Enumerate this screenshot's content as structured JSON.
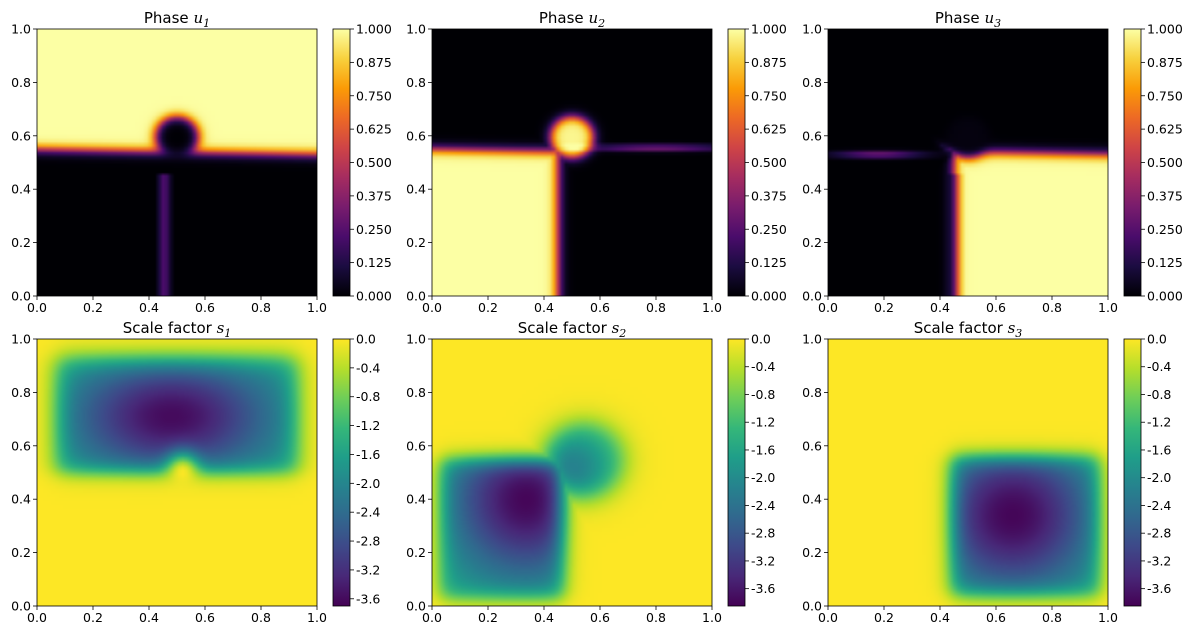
{
  "figure": {
    "colormaps": {
      "inferno": [
        "#000004",
        "#1b0c41",
        "#4a0c6b",
        "#781c6d",
        "#a52c60",
        "#cf4446",
        "#ed6925",
        "#fb9b06",
        "#f7d13d",
        "#fcffa4"
      ],
      "viridis": [
        "#440154",
        "#482878",
        "#3e4989",
        "#31688e",
        "#26828e",
        "#1f9e89",
        "#35b779",
        "#6ece58",
        "#b5de2b",
        "#fde725"
      ]
    }
  },
  "chart_data": [
    {
      "type": "heatmap",
      "title_prefix": "Phase",
      "title_var": "u",
      "title_sub": "1",
      "field": "u1",
      "colormap": "magma-like (inferno)",
      "xlim": [
        0,
        1
      ],
      "ylim": [
        0,
        1
      ],
      "xticks": [
        "0.0",
        "0.2",
        "0.4",
        "0.6",
        "0.8",
        "1.0"
      ],
      "yticks": [
        "0.0",
        "0.2",
        "0.4",
        "0.6",
        "0.8",
        "1.0"
      ],
      "colorbar_range": [
        0,
        1
      ],
      "colorbar_ticks": [
        "0.000",
        "0.125",
        "0.250",
        "0.375",
        "0.500",
        "0.625",
        "0.750",
        "0.875",
        "1.000"
      ],
      "description_values": {
        "interface_y": 0.55,
        "droplet_center": [
          0.5,
          0.6
        ],
        "droplet_radius": 0.08,
        "stem_x": 0.46
      }
    },
    {
      "type": "heatmap",
      "title_prefix": "Phase",
      "title_var": "u",
      "title_sub": "2",
      "field": "u2",
      "colormap": "magma-like (inferno)",
      "xlim": [
        0,
        1
      ],
      "ylim": [
        0,
        1
      ],
      "xticks": [
        "0.0",
        "0.2",
        "0.4",
        "0.6",
        "0.8",
        "1.0"
      ],
      "yticks": [
        "0.0",
        "0.2",
        "0.4",
        "0.6",
        "0.8",
        "1.0"
      ],
      "colorbar_range": [
        0,
        1
      ],
      "colorbar_ticks": [
        "0.000",
        "0.125",
        "0.250",
        "0.375",
        "0.500",
        "0.625",
        "0.750",
        "0.875",
        "1.000"
      ]
    },
    {
      "type": "heatmap",
      "title_prefix": "Phase",
      "title_var": "u",
      "title_sub": "3",
      "field": "u3",
      "colormap": "magma-like (inferno)",
      "xlim": [
        0,
        1
      ],
      "ylim": [
        0,
        1
      ],
      "xticks": [
        "0.0",
        "0.2",
        "0.4",
        "0.6",
        "0.8",
        "1.0"
      ],
      "yticks": [
        "0.0",
        "0.2",
        "0.4",
        "0.6",
        "0.8",
        "1.0"
      ],
      "colorbar_range": [
        0,
        1
      ],
      "colorbar_ticks": [
        "0.000",
        "0.125",
        "0.250",
        "0.375",
        "0.500",
        "0.625",
        "0.750",
        "0.875",
        "1.000"
      ]
    },
    {
      "type": "heatmap",
      "title_prefix": "Scale factor",
      "title_var": "s",
      "title_sub": "1",
      "field": "s1",
      "colormap": "viridis",
      "xlim": [
        0,
        1
      ],
      "ylim": [
        0,
        1
      ],
      "xticks": [
        "0.0",
        "0.2",
        "0.4",
        "0.6",
        "0.8",
        "1.0"
      ],
      "yticks": [
        "0.0",
        "0.2",
        "0.4",
        "0.6",
        "0.8",
        "1.0"
      ],
      "colorbar_range": [
        -3.7,
        0
      ],
      "colorbar_ticks": [
        "0.0",
        "-0.4",
        "-0.8",
        "-1.2",
        "-1.6",
        "-2.0",
        "-2.4",
        "-2.8",
        "-3.2",
        "-3.6"
      ],
      "minimum_value": -3.6
    },
    {
      "type": "heatmap",
      "title_prefix": "Scale factor",
      "title_var": "s",
      "title_sub": "2",
      "field": "s2",
      "colormap": "viridis",
      "xlim": [
        0,
        1
      ],
      "ylim": [
        0,
        1
      ],
      "xticks": [
        "0.0",
        "0.2",
        "0.4",
        "0.6",
        "0.8",
        "1.0"
      ],
      "yticks": [
        "0.0",
        "0.2",
        "0.4",
        "0.6",
        "0.8",
        "1.0"
      ],
      "colorbar_range": [
        -3.85,
        0
      ],
      "colorbar_ticks": [
        "0.0",
        "-0.4",
        "-0.8",
        "-1.2",
        "-1.6",
        "-2.0",
        "-2.4",
        "-2.8",
        "-3.2",
        "-3.6"
      ],
      "minimum_value": -3.8
    },
    {
      "type": "heatmap",
      "title_prefix": "Scale factor",
      "title_var": "s",
      "title_sub": "3",
      "field": "s3",
      "colormap": "viridis",
      "xlim": [
        0,
        1
      ],
      "ylim": [
        0,
        1
      ],
      "xticks": [
        "0.0",
        "0.2",
        "0.4",
        "0.6",
        "0.8",
        "1.0"
      ],
      "yticks": [
        "0.0",
        "0.2",
        "0.4",
        "0.6",
        "0.8",
        "1.0"
      ],
      "colorbar_range": [
        -3.85,
        0
      ],
      "colorbar_ticks": [
        "0.0",
        "-0.4",
        "-0.8",
        "-1.2",
        "-1.6",
        "-2.0",
        "-2.4",
        "-2.8",
        "-3.2",
        "-3.6"
      ],
      "minimum_value": -3.8
    }
  ]
}
